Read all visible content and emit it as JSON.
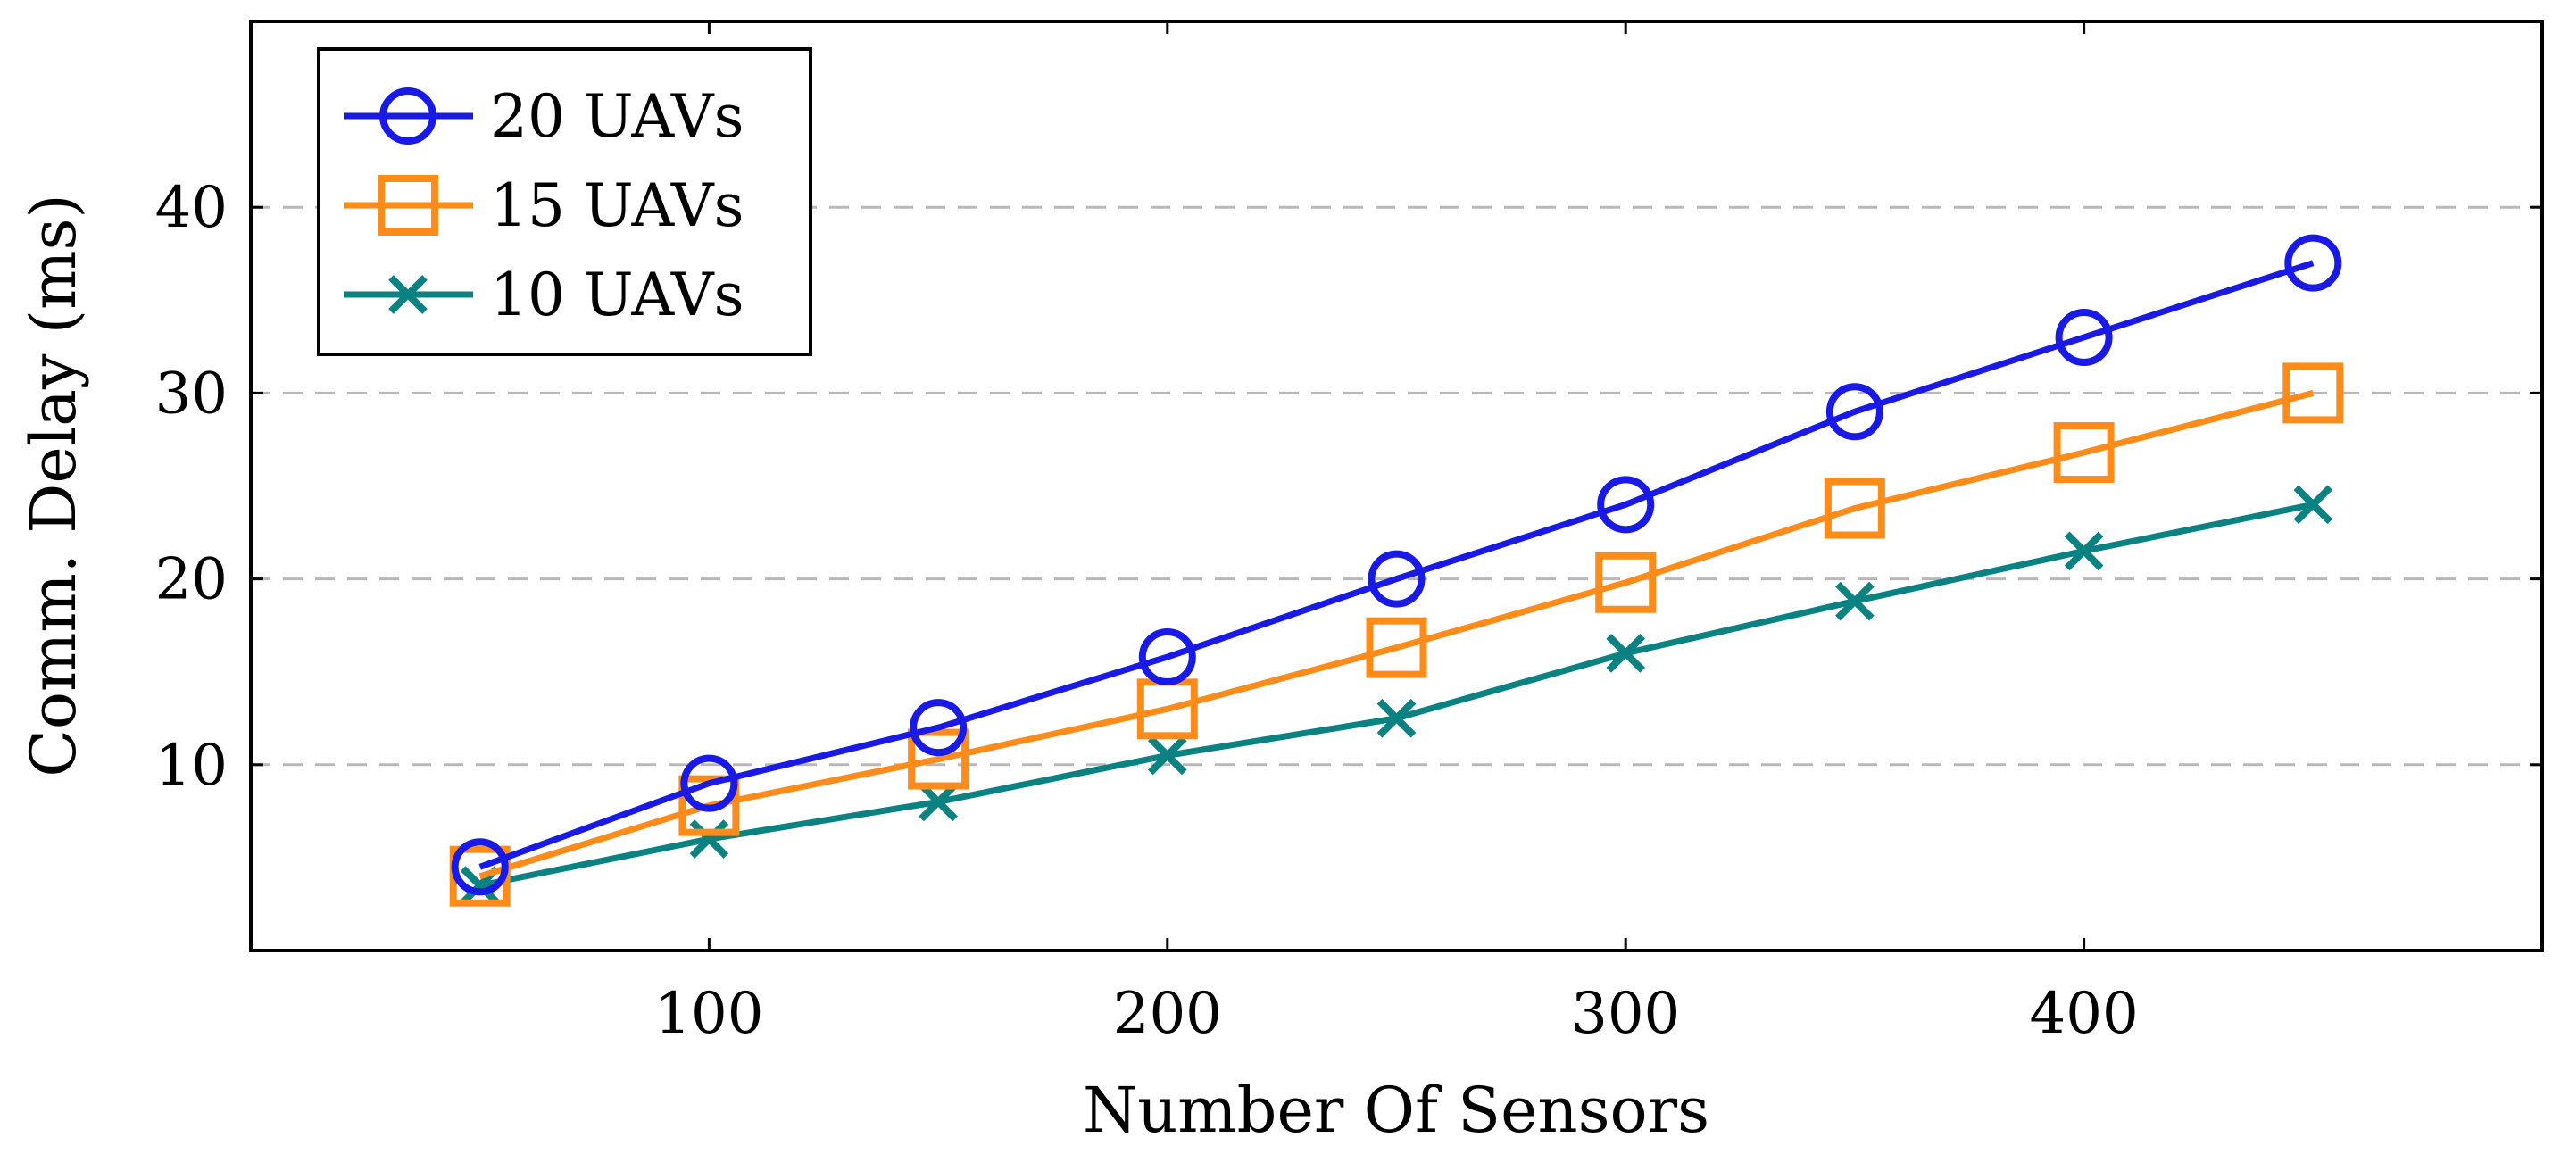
{
  "chart_data": {
    "type": "line",
    "title": "",
    "xlabel": "Number Of Sensors",
    "ylabel": "Comm. Delay (ms)",
    "x": [
      50,
      100,
      150,
      200,
      250,
      300,
      350,
      400,
      450
    ],
    "xlim": [
      0,
      500
    ],
    "ylim": [
      0,
      50
    ],
    "xticks": [
      100,
      200,
      300,
      400
    ],
    "xtick_labels": [
      "100",
      "200",
      "300",
      "400"
    ],
    "yticks": [
      10,
      20,
      30,
      40
    ],
    "ytick_labels": [
      "10",
      "20",
      "30",
      "40"
    ],
    "grid": "horizontal dashed",
    "legend_position": "top-left",
    "series": [
      {
        "name": "20 UAVs",
        "color": "#1a1ae6",
        "marker": "circle",
        "values": [
          4.5,
          9,
          12,
          15.8,
          20,
          24,
          29,
          33,
          37
        ]
      },
      {
        "name": "15 UAVs",
        "color": "#ff8c1a",
        "marker": "square",
        "values": [
          4,
          7.8,
          10.3,
          13,
          16.3,
          19.8,
          23.8,
          26.8,
          30
        ]
      },
      {
        "name": "10 UAVs",
        "color": "#0a8282",
        "marker": "x",
        "values": [
          3.5,
          6,
          8,
          10.5,
          12.5,
          16,
          18.8,
          21.5,
          24
        ]
      }
    ]
  }
}
